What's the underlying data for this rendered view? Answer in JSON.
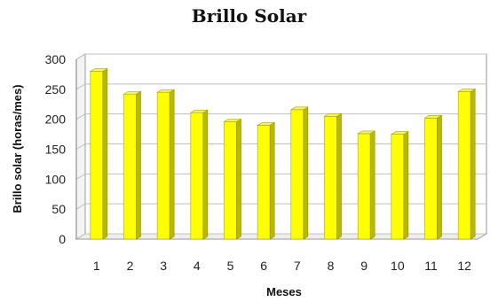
{
  "chart_data": {
    "type": "bar",
    "title": "Brillo Solar",
    "xlabel": "Meses",
    "ylabel": "Brillo solar (horas/mes)",
    "categories": [
      "1",
      "2",
      "3",
      "4",
      "5",
      "6",
      "7",
      "8",
      "9",
      "10",
      "11",
      "12"
    ],
    "values": [
      280,
      242,
      245,
      211,
      196,
      190,
      216,
      205,
      176,
      175,
      202,
      246
    ],
    "ylim": [
      0,
      300
    ],
    "yticks": [
      0,
      50,
      100,
      150,
      200,
      250,
      300
    ],
    "grid": true,
    "three_d": true,
    "colors": {
      "bar_front": "#ffff00",
      "bar_side": "#b9b900",
      "bar_top": "#f0f07a",
      "grid": "#c0c0c0",
      "wall": "#ffffff"
    }
  }
}
